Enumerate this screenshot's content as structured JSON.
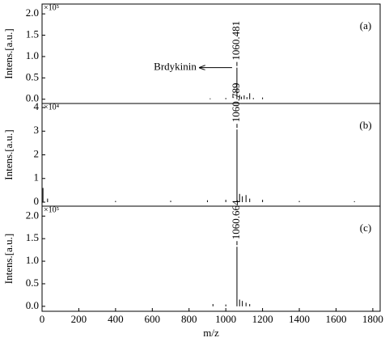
{
  "chart_data": [
    {
      "type": "spectrum",
      "panel_label": "(a)",
      "ylabel": "Intens.[a.u.]",
      "y_scale_label": "×10⁵",
      "xlim": [
        0,
        1840
      ],
      "ylim": [
        -0.1,
        2.23
      ],
      "yticks": [
        {
          "value": 0,
          "label": "0.0"
        },
        {
          "value": 0.5,
          "label": "0.5"
        },
        {
          "value": 1,
          "label": "1.0"
        },
        {
          "value": 1.5,
          "label": "1.5"
        },
        {
          "value": 2,
          "label": "2.0"
        }
      ],
      "x": [
        915,
        1000,
        1060.481,
        1075,
        1085,
        1100,
        1115,
        1130,
        1150,
        1200
      ],
      "values": [
        0.02,
        0.03,
        0.74,
        0.1,
        0.06,
        0.09,
        0.05,
        0.14,
        0.03,
        0.04
      ],
      "color": "#000000",
      "peak_label": "1060.481",
      "annotation": "Brdykinin"
    },
    {
      "type": "spectrum",
      "panel_label": "(b)",
      "ylabel": "Intens.[a.u.]",
      "y_scale_label": "×10⁴",
      "xlim": [
        0,
        1840
      ],
      "ylim": [
        -0.17,
        4.17
      ],
      "yticks": [
        0,
        1,
        2,
        3,
        4
      ],
      "x": [
        5,
        30,
        400,
        700,
        900,
        1000,
        1060.789,
        1075,
        1090,
        1110,
        1130,
        1200,
        1400,
        1700
      ],
      "values": [
        0.6,
        0.15,
        0.05,
        0.06,
        0.08,
        0.1,
        3.07,
        0.35,
        0.25,
        0.3,
        0.15,
        0.1,
        0.05,
        0.04
      ],
      "color": "#000000",
      "peak_label": "1060.789"
    },
    {
      "type": "spectrum",
      "panel_label": "(c)",
      "ylabel": "Intens.[a.u.]",
      "y_scale_label": "×10⁵",
      "xlim": [
        0,
        1840
      ],
      "ylim": [
        -0.11,
        2.22
      ],
      "yticks": [
        {
          "value": 0,
          "label": "0.0"
        },
        {
          "value": 0.5,
          "label": "0.5"
        },
        {
          "value": 1,
          "label": "1.0"
        },
        {
          "value": 1.5,
          "label": "1.5"
        },
        {
          "value": 2,
          "label": "2.0"
        }
      ],
      "x": [
        930,
        1000,
        1060.664,
        1075,
        1090,
        1110,
        1130
      ],
      "values": [
        0.05,
        0.04,
        1.32,
        0.15,
        0.12,
        0.08,
        0.05
      ],
      "color": "#000000",
      "peak_label": "1060.664",
      "xlabel": "m/z",
      "xticks": [
        0,
        200,
        400,
        600,
        800,
        1000,
        1200,
        1400,
        1600,
        1800
      ]
    }
  ]
}
